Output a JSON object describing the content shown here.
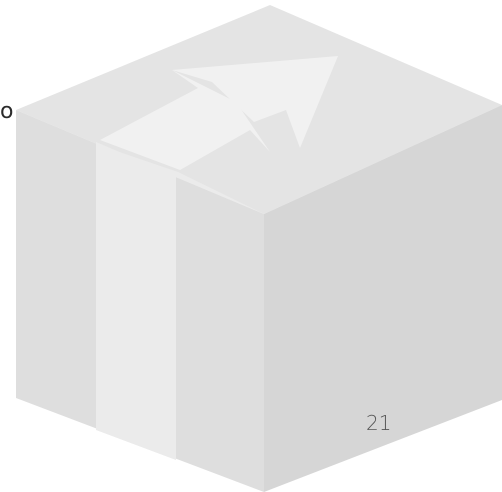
{
  "box": {
    "side_number": "21",
    "edge_glyph": "o",
    "top_icon": "arrow-up-right-icon"
  },
  "colors": {
    "top_face": "#e4e4e4",
    "left_face": "#dedede",
    "right_face": "#d6d6d6",
    "tape": "#ebebeb",
    "arrow": "#f1f1f1",
    "number_text": "#555555"
  }
}
